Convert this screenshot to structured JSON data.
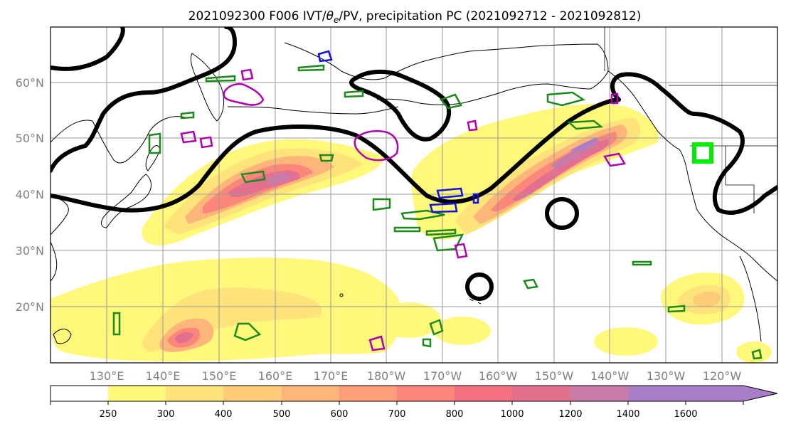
{
  "figure": {
    "title_prefix": "2021092300 F006 IVT/",
    "title_theta": "θ",
    "title_theta_sub": "e",
    "title_suffix": "/PV, precipitation PC (2021092712 - 2021092812)"
  },
  "map": {
    "lat_labels": [
      "60°N",
      "50°N",
      "40°N",
      "30°N",
      "20°N"
    ],
    "lon_labels": [
      "130°E",
      "140°E",
      "150°E",
      "160°E",
      "170°E",
      "180°W",
      "170°W",
      "160°W",
      "150°W",
      "140°W",
      "130°W",
      "120°W"
    ]
  },
  "colorbar": {
    "labels": [
      "250",
      "300",
      "400",
      "500",
      "600",
      "700",
      "800",
      "1000",
      "1200",
      "1400",
      "1600"
    ],
    "colors": [
      "#ffffff",
      "#fff87a",
      "#fee27a",
      "#fdcb7a",
      "#fdb57a",
      "#fc9e7a",
      "#fa877a",
      "#f37080",
      "#e2708e",
      "#c97aa7",
      "#a87ec8"
    ]
  },
  "colors": {
    "pv": "#000000",
    "theta_e": "#1a8a1a",
    "magenta": "#b000b0",
    "blue": "#1010e0",
    "box": "#00ee00"
  }
}
